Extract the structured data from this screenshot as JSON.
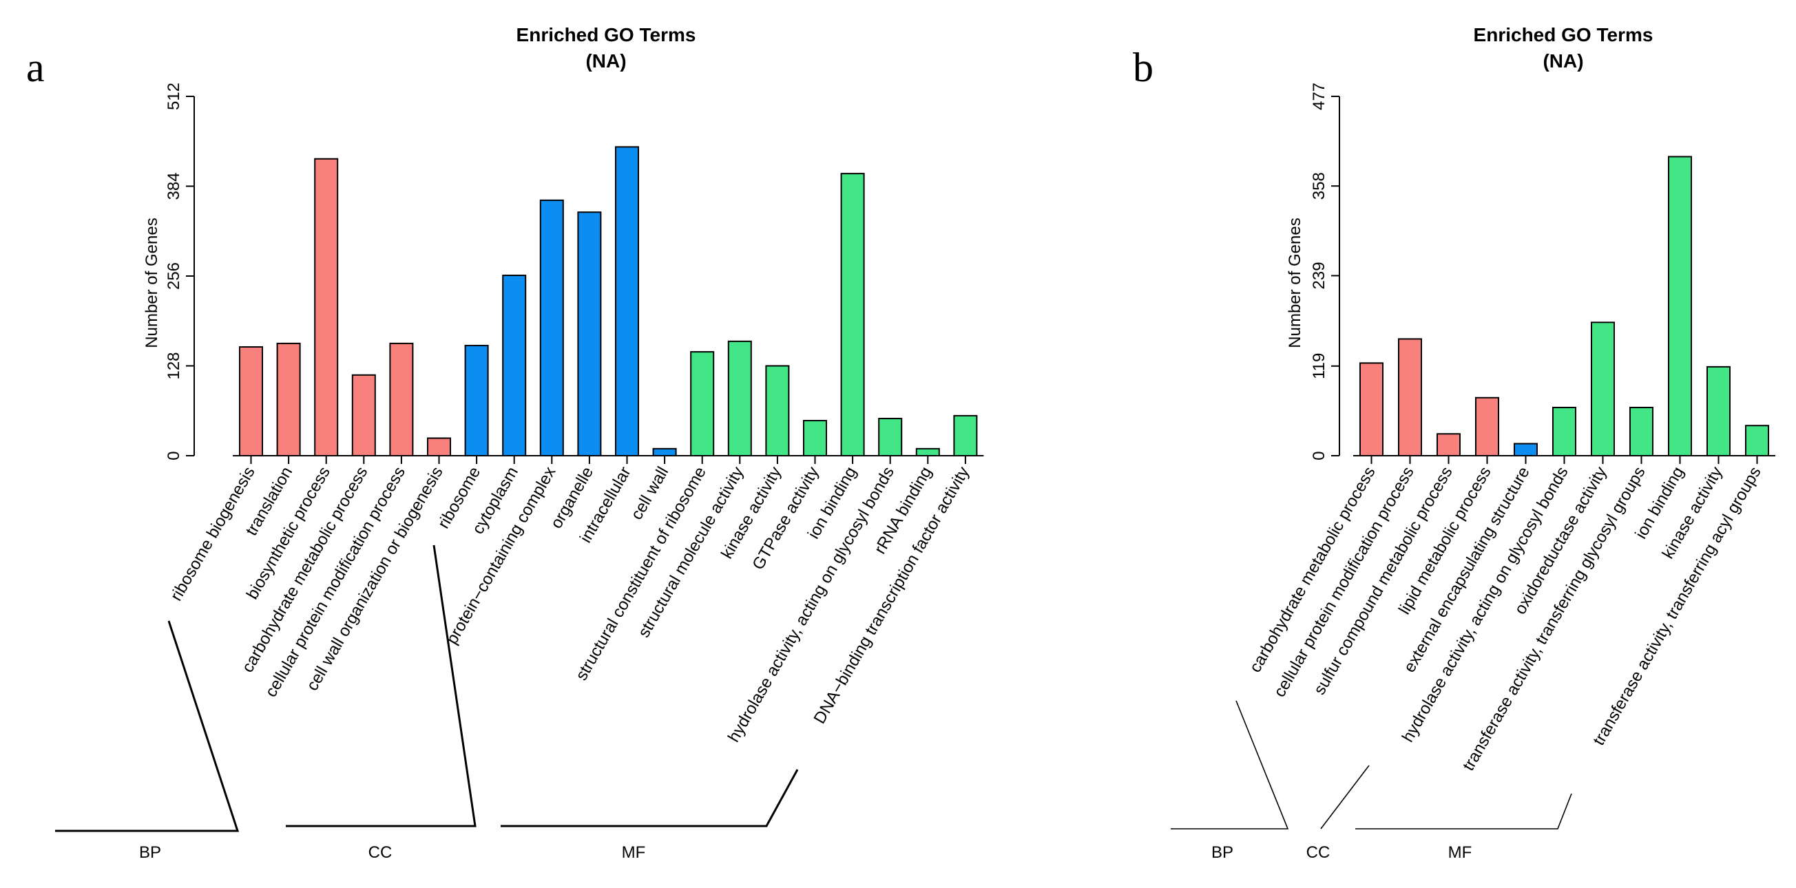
{
  "colors": {
    "BP": "#f8807d",
    "CC": "#0b8df2",
    "MF": "#43e686"
  },
  "chart_data": [
    {
      "panel": "a",
      "type": "bar",
      "title": "Enriched GO Terms",
      "subtitle": "(NA)",
      "ylabel": "Number of Genes",
      "ylim": [
        0,
        512
      ],
      "yticks": [
        "0",
        "128",
        "256",
        "384",
        "512"
      ],
      "categories": [
        "ribosome biogenesis",
        "translation",
        "biosynthetic process",
        "carbohydrate metabolic process",
        "cellular protein modification process",
        "cell wall organization or biogenesis",
        "ribosome",
        "cytoplasm",
        "protein−containing complex",
        "organelle",
        "intracellular",
        "cell wall",
        "structural constituent of ribosome",
        "structural molecule activity",
        "kinase activity",
        "GTPase activity",
        "ion binding",
        "hydrolase activity, acting on glycosyl bonds",
        "rRNA binding",
        "DNA−binding transcription factor activity"
      ],
      "groups": [
        "BP",
        "BP",
        "BP",
        "BP",
        "BP",
        "BP",
        "CC",
        "CC",
        "CC",
        "CC",
        "CC",
        "CC",
        "MF",
        "MF",
        "MF",
        "MF",
        "MF",
        "MF",
        "MF",
        "MF"
      ],
      "values": [
        155,
        160,
        423,
        115,
        160,
        25,
        157,
        257,
        364,
        347,
        440,
        10,
        148,
        163,
        128,
        50,
        402,
        53,
        10,
        57
      ],
      "group_labels": [
        "BP",
        "CC",
        "MF"
      ]
    },
    {
      "panel": "b",
      "type": "bar",
      "title": "Enriched GO Terms",
      "subtitle": "(NA)",
      "ylabel": "Number of Genes",
      "ylim": [
        0,
        477
      ],
      "yticks": [
        "0",
        "119",
        "239",
        "358",
        "477"
      ],
      "categories": [
        "carbohydrate metabolic process",
        "cellular protein modification process",
        "sulfur compound metabolic process",
        "lipid metabolic process",
        "external encapsulating structure",
        "hydrolase activity, acting on glycosyl bonds",
        "oxidoreductase activity",
        "transferase activity, transferring glycosyl groups",
        "ion binding",
        "kinase activity",
        "transferase activity, transferring acyl groups"
      ],
      "groups": [
        "BP",
        "BP",
        "BP",
        "BP",
        "CC",
        "MF",
        "MF",
        "MF",
        "MF",
        "MF",
        "MF"
      ],
      "values": [
        123,
        155,
        29,
        77,
        16,
        64,
        177,
        64,
        397,
        118,
        40
      ],
      "group_labels": [
        "BP",
        "CC",
        "MF"
      ]
    }
  ]
}
